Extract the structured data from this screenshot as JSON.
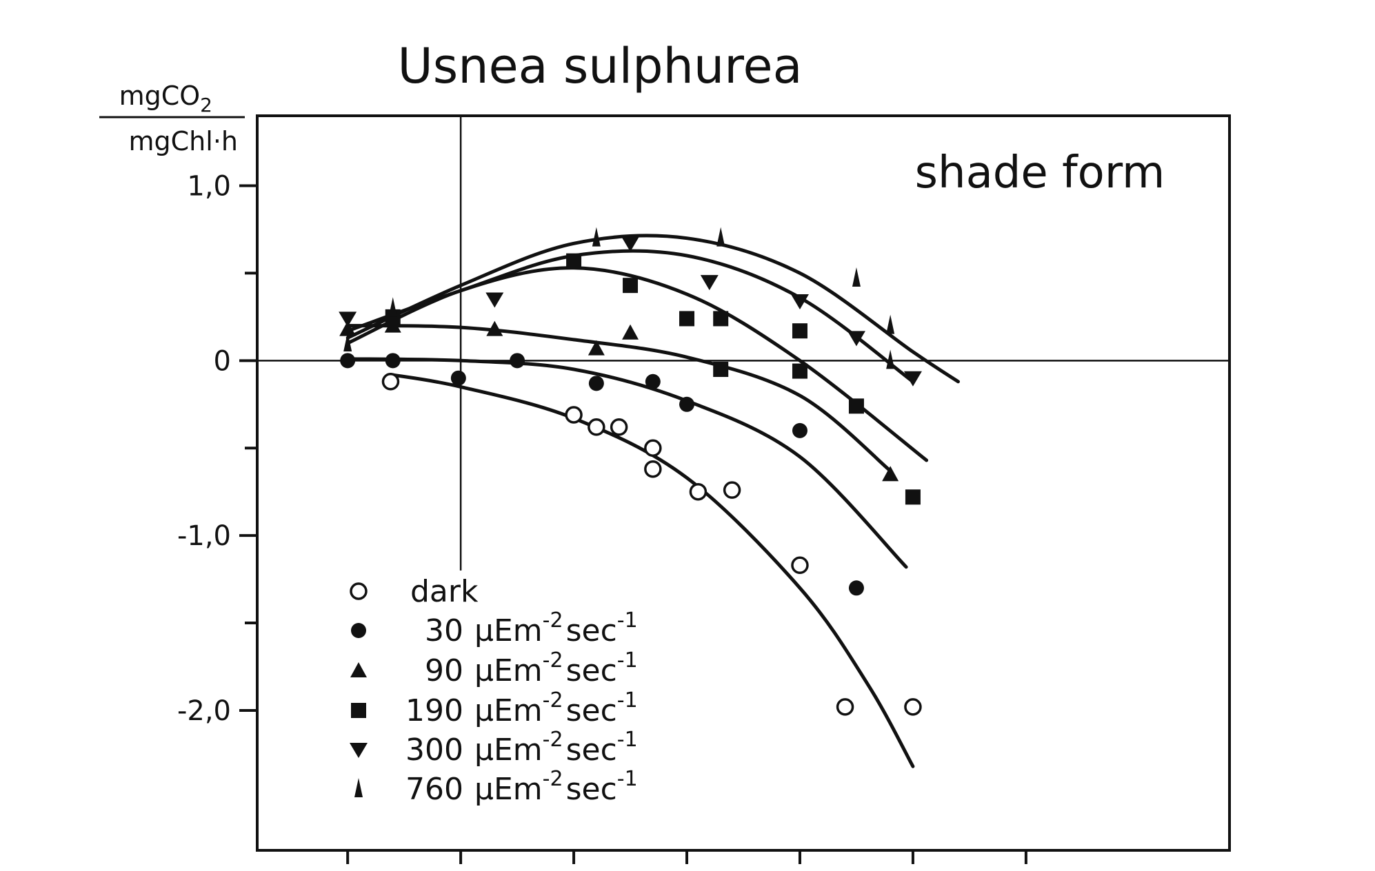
{
  "chart_data": {
    "type": "scatter",
    "title": "Usnea sulphurea",
    "annotation": "shade form",
    "ylabel_numerator": "mgCO",
    "ylabel_numerator_sub": "2",
    "ylabel_denominator": "mgChl·h",
    "xlabel": "",
    "ylim": [
      -2.8,
      1.4
    ],
    "xlim": [
      -9,
      34
    ],
    "x_ticks": [
      -5,
      0,
      5,
      10,
      15,
      20,
      25
    ],
    "y_ticks_labeled": [
      {
        "value": 1.0,
        "label": "1,0"
      },
      {
        "value": 0,
        "label": "0"
      },
      {
        "value": -1.0,
        "label": "-1,0"
      },
      {
        "value": -2.0,
        "label": "-2,0"
      }
    ],
    "y_ticks_minor": [
      0.5,
      -0.5,
      -1.5
    ],
    "reference_lines": {
      "y": 0,
      "x": 0
    },
    "legend_position": "bottom-left",
    "unit_text": "µEm",
    "unit_exp1": "-2",
    "unit_sec": "sec",
    "unit_exp2": "-1",
    "series": [
      {
        "name": "dark",
        "legend_value": "",
        "marker": "circle-open",
        "points": [
          [
            -3.1,
            -0.12
          ],
          [
            5.0,
            -0.31
          ],
          [
            6.0,
            -0.38
          ],
          [
            7.0,
            -0.38
          ],
          [
            8.5,
            -0.5
          ],
          [
            8.5,
            -0.62
          ],
          [
            10.5,
            -0.75
          ],
          [
            12.0,
            -0.74
          ],
          [
            15.0,
            -1.17
          ],
          [
            17.0,
            -1.98
          ],
          [
            20.0,
            -1.98
          ]
        ],
        "curve": [
          [
            -3.1,
            -0.08
          ],
          [
            0,
            -0.15
          ],
          [
            5,
            -0.33
          ],
          [
            10,
            -0.67
          ],
          [
            15,
            -1.3
          ],
          [
            18,
            -1.85
          ],
          [
            20,
            -2.32
          ]
        ]
      },
      {
        "name": "30",
        "legend_value": "30",
        "marker": "circle-filled",
        "points": [
          [
            -5.0,
            0.0
          ],
          [
            -3.0,
            0.0
          ],
          [
            -0.1,
            -0.1
          ],
          [
            2.5,
            0.0
          ],
          [
            6.0,
            -0.13
          ],
          [
            8.5,
            -0.12
          ],
          [
            10.0,
            -0.25
          ],
          [
            15.0,
            -0.4
          ],
          [
            17.5,
            -1.3
          ]
        ],
        "curve": [
          [
            -5,
            0.01
          ],
          [
            0,
            0.0
          ],
          [
            5,
            -0.05
          ],
          [
            10,
            -0.23
          ],
          [
            15,
            -0.55
          ],
          [
            19.7,
            -1.18
          ]
        ]
      },
      {
        "name": "90",
        "legend_value": "90",
        "marker": "triangle-up",
        "points": [
          [
            -5.0,
            0.18
          ],
          [
            -3.0,
            0.2
          ],
          [
            1.5,
            0.18
          ],
          [
            6.0,
            0.07
          ],
          [
            7.5,
            0.16
          ],
          [
            19,
            -0.65
          ]
        ],
        "curve": [
          [
            -5,
            0.2
          ],
          [
            0,
            0.19
          ],
          [
            5,
            0.12
          ],
          [
            10,
            0.02
          ],
          [
            15,
            -0.2
          ],
          [
            19,
            -0.63
          ]
        ]
      },
      {
        "name": "190",
        "legend_value": "190",
        "marker": "square-filled",
        "points": [
          [
            -3.0,
            0.25
          ],
          [
            5.0,
            0.57
          ],
          [
            7.5,
            0.43
          ],
          [
            10.0,
            0.24
          ],
          [
            11.5,
            0.24
          ],
          [
            11.5,
            -0.05
          ],
          [
            15.0,
            0.17
          ],
          [
            15.0,
            -0.06
          ],
          [
            17.5,
            -0.26
          ],
          [
            20.0,
            -0.78
          ]
        ],
        "curve": [
          [
            -5,
            0.1
          ],
          [
            0,
            0.4
          ],
          [
            5,
            0.53
          ],
          [
            10,
            0.38
          ],
          [
            15,
            0.0
          ],
          [
            20.6,
            -0.57
          ]
        ]
      },
      {
        "name": "300",
        "legend_value": "300",
        "marker": "triangle-down",
        "points": [
          [
            -5.0,
            0.24
          ],
          [
            1.5,
            0.35
          ],
          [
            7.5,
            0.67
          ],
          [
            11.0,
            0.45
          ],
          [
            15.0,
            0.34
          ],
          [
            17.5,
            0.13
          ],
          [
            20.0,
            -0.1
          ]
        ],
        "curve": [
          [
            -5,
            0.17
          ],
          [
            0,
            0.4
          ],
          [
            5,
            0.6
          ],
          [
            10,
            0.6
          ],
          [
            15,
            0.36
          ],
          [
            20,
            -0.12
          ]
        ]
      },
      {
        "name": "760",
        "legend_value": "760",
        "marker": "spike",
        "points": [
          [
            -5.0,
            0.1
          ],
          [
            -3.0,
            0.3
          ],
          [
            6.0,
            0.7
          ],
          [
            11.5,
            0.7
          ],
          [
            17.5,
            0.47
          ],
          [
            19.0,
            0.2
          ],
          [
            19.0,
            0.0
          ]
        ],
        "curve": [
          [
            -5,
            0.13
          ],
          [
            0,
            0.43
          ],
          [
            5,
            0.67
          ],
          [
            10,
            0.7
          ],
          [
            15,
            0.5
          ],
          [
            20,
            0.05
          ],
          [
            22,
            -0.12
          ]
        ]
      }
    ]
  }
}
